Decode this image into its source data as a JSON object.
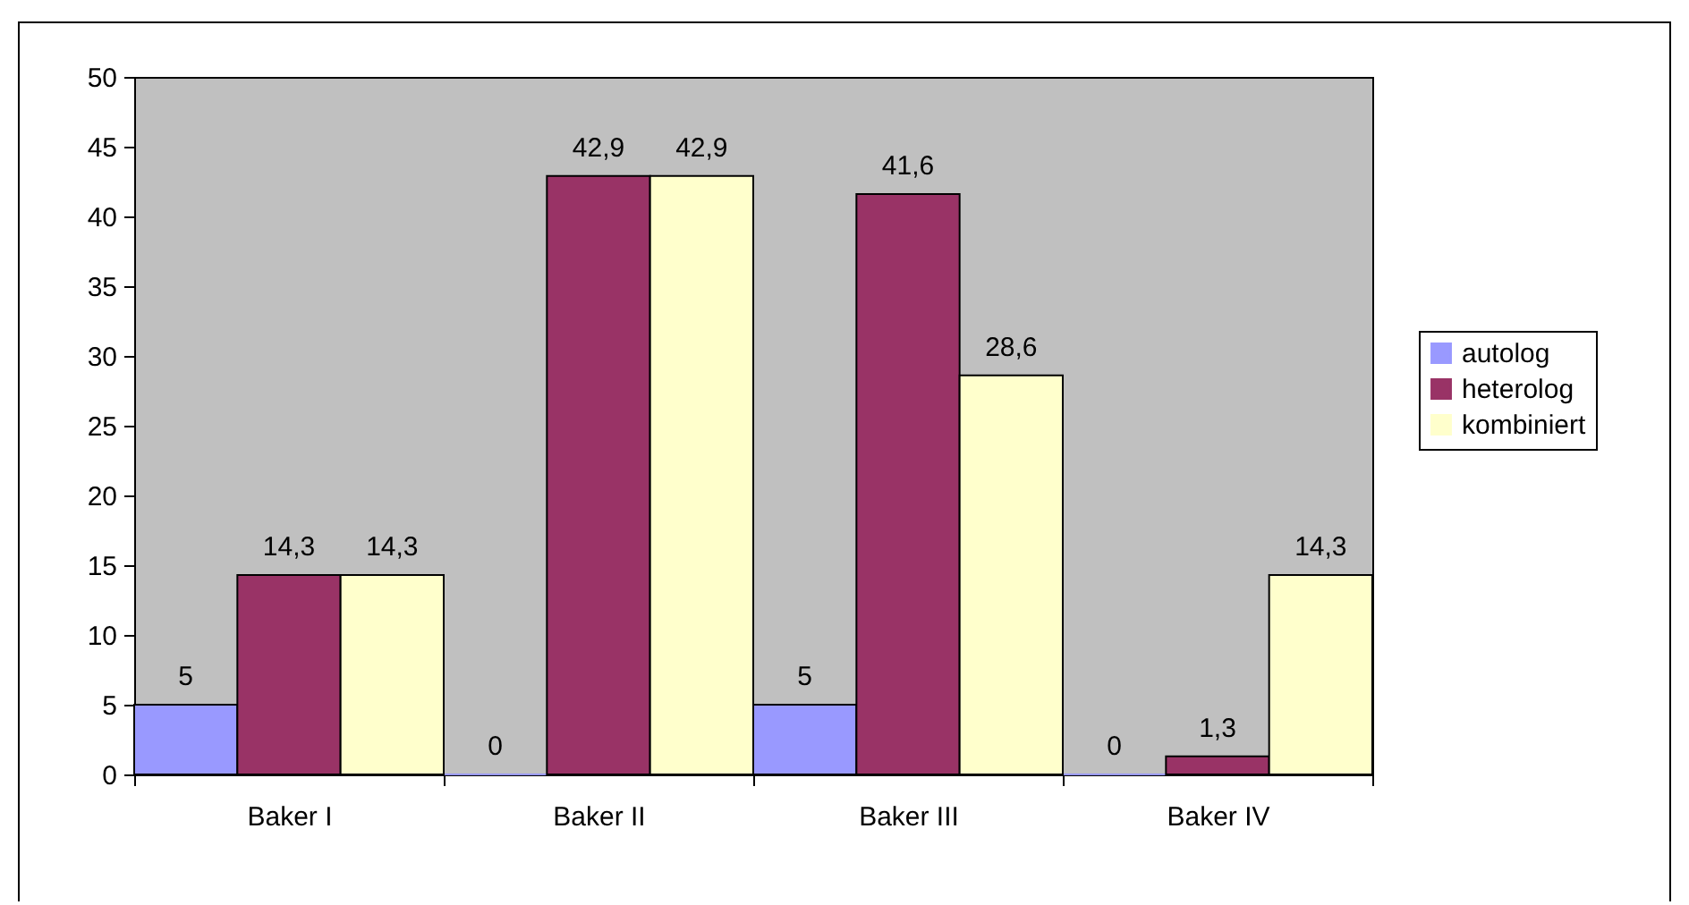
{
  "chart_data": {
    "type": "bar",
    "categories": [
      "Baker I",
      "Baker II",
      "Baker III",
      "Baker IV"
    ],
    "series": [
      {
        "name": "autolog",
        "color": "#9999ff",
        "values": [
          5,
          0,
          5,
          0
        ],
        "value_labels": [
          "5",
          "0",
          "5",
          "0"
        ]
      },
      {
        "name": "heterolog",
        "color": "#993366",
        "values": [
          14.3,
          42.9,
          41.6,
          1.3
        ],
        "value_labels": [
          "14,3",
          "42,9",
          "41,6",
          "1,3"
        ]
      },
      {
        "name": "kombiniert",
        "color": "#ffffcc",
        "values": [
          14.3,
          42.9,
          28.6,
          14.3
        ],
        "value_labels": [
          "14,3",
          "42,9",
          "28,6",
          "14,3"
        ]
      }
    ],
    "ylim": [
      0,
      50
    ],
    "yticks": [
      0,
      5,
      10,
      15,
      20,
      25,
      30,
      35,
      40,
      45,
      50
    ],
    "legend": "right",
    "grid": false
  }
}
